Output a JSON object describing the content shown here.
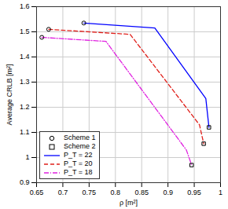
{
  "chart_data": {
    "type": "line",
    "x_label": "ρ [m²]",
    "y_label": "Average CRLB [m²]",
    "xlim": [
      0.65,
      1
    ],
    "xticks": [
      0.65,
      0.7,
      0.75,
      0.8,
      0.85,
      0.9,
      0.95,
      1
    ],
    "ylim": [
      0.9,
      1.6
    ],
    "yticks": [
      0.9,
      1,
      1.1,
      1.2,
      1.3,
      1.4,
      1.5,
      1.6
    ],
    "grid": true,
    "legend": "lower left",
    "series": [
      {
        "name": "Scheme 1",
        "type": "scatter",
        "marker": "circle",
        "color": "#000000",
        "x": [
          0.74,
          0.673,
          0.66
        ],
        "values": [
          1.535,
          1.51,
          1.478
        ]
      },
      {
        "name": "Scheme 2",
        "type": "scatter",
        "marker": "square",
        "color": "#000000",
        "x": [
          0.978,
          0.968,
          0.945
        ],
        "values": [
          1.12,
          1.055,
          0.97
        ]
      },
      {
        "name": "P_T = 22",
        "type": "line",
        "line_style": "solid",
        "color": "#0000ff",
        "x": [
          0.74,
          0.875,
          0.972,
          0.978
        ],
        "values": [
          1.535,
          1.515,
          1.235,
          1.12
        ]
      },
      {
        "name": "P_T = 20",
        "type": "line",
        "line_style": "dashed",
        "color": "#e0201b",
        "x": [
          0.673,
          0.828,
          0.96,
          0.968
        ],
        "values": [
          1.51,
          1.49,
          1.13,
          1.055
        ]
      },
      {
        "name": "P_T = 18",
        "type": "line",
        "line_style": "dashdot",
        "color": "#e020e0",
        "x": [
          0.66,
          0.782,
          0.935,
          0.945
        ],
        "values": [
          1.478,
          1.462,
          1.03,
          0.97
        ]
      }
    ]
  }
}
